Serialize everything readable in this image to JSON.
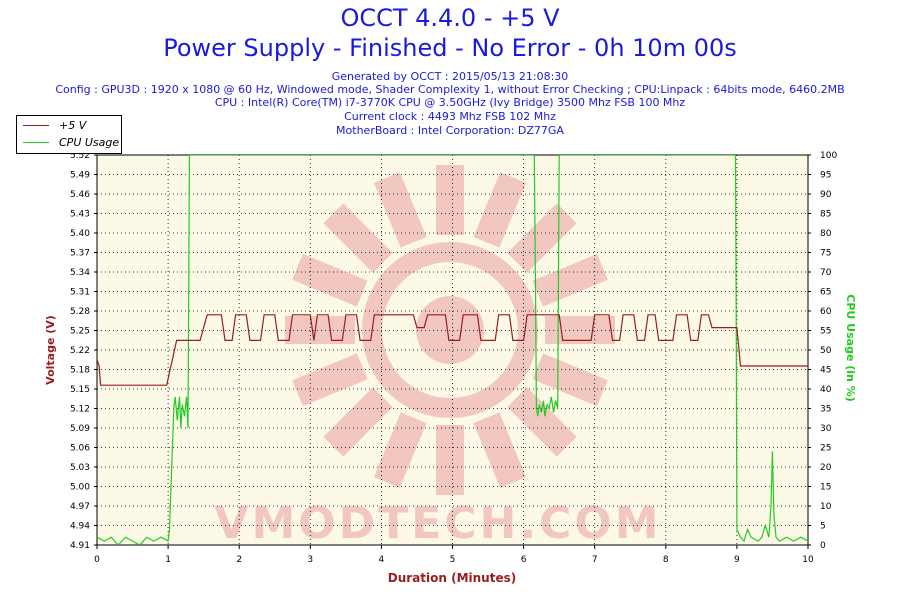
{
  "header": {
    "title": "OCCT 4.4.0 - +5 V",
    "subtitle": "Power Supply - Finished - No Error - 0h 10m 00s",
    "info": [
      "Generated by OCCT : 2015/05/13 21:08:30",
      "Config : GPU3D : 1920 x 1080 @ 60 Hz, Windowed mode, Shader Complexity 1, without Error Checking ; CPU:Linpack : 64bits mode, 6460.2MB",
      "CPU : Intel(R) Core(TM) i7-3770K CPU @ 3.50GHz (Ivy Bridge) 3500 Mhz FSB 100 Mhz",
      "Current clock : 4493 Mhz FSB 102 Mhz",
      "MotherBoard : Intel Corporation: DZ77GA"
    ]
  },
  "legend": [
    {
      "label": "+5 V",
      "color": "#9b1c1c"
    },
    {
      "label": "CPU Usage",
      "color": "#22cc22"
    }
  ],
  "colors": {
    "voltage": "#9b1c1c",
    "cpu": "#22cc22",
    "plot_bg": "#fcf9e6",
    "watermark": "#f2c7c0"
  },
  "chart_data": {
    "type": "line",
    "xlabel": "Duration (Minutes)",
    "ylabel": "Voltage (V)",
    "ylabel_right": "CPU Usage (in %)",
    "xlim": [
      0,
      10
    ],
    "ylim": [
      4.91,
      5.52
    ],
    "ylim_right": [
      0,
      100
    ],
    "x_ticks": [
      "0",
      "1",
      "2",
      "3",
      "4",
      "5",
      "6",
      "7",
      "8",
      "9",
      "10"
    ],
    "y_ticks": [
      "4.91",
      "4.94",
      "4.97",
      "5.00",
      "5.03",
      "5.06",
      "5.09",
      "5.12",
      "5.15",
      "5.18",
      "5.22",
      "5.25",
      "5.28",
      "5.31",
      "5.34",
      "5.37",
      "5.40",
      "5.43",
      "5.46",
      "5.49",
      "5.52"
    ],
    "y_ticks_right": [
      "0",
      "5",
      "10",
      "15",
      "20",
      "25",
      "30",
      "35",
      "40",
      "45",
      "50",
      "55",
      "60",
      "65",
      "70",
      "75",
      "80",
      "85",
      "90",
      "95",
      "100"
    ],
    "grid": true,
    "legend_position": "top-left",
    "watermark": "VMODTECH.COM",
    "series": [
      {
        "name": "+5 V",
        "x": [
          0.0,
          0.03,
          0.05,
          0.08,
          0.98,
          1.02,
          1.06,
          1.12,
          1.2,
          1.45,
          1.5,
          1.55,
          1.75,
          1.8,
          1.9,
          1.95,
          2.1,
          2.15,
          2.3,
          2.35,
          2.5,
          2.55,
          2.7,
          2.75,
          2.8,
          3.0,
          3.05,
          3.1,
          3.25,
          3.3,
          3.45,
          3.5,
          3.65,
          3.7,
          3.85,
          3.9,
          4.0,
          4.45,
          4.5,
          4.6,
          4.65,
          4.9,
          4.95,
          5.1,
          5.15,
          5.35,
          5.4,
          5.6,
          5.65,
          5.8,
          5.85,
          6.0,
          6.05,
          6.5,
          6.55,
          6.95,
          7.0,
          7.2,
          7.25,
          7.35,
          7.4,
          7.55,
          7.6,
          7.7,
          7.75,
          7.85,
          7.9,
          8.0,
          8.1,
          8.15,
          8.3,
          8.35,
          8.45,
          8.5,
          8.6,
          8.65,
          9.0,
          9.05,
          10.0
        ],
        "values": [
          5.2,
          5.19,
          5.16,
          5.16,
          5.16,
          5.18,
          5.2,
          5.23,
          5.23,
          5.23,
          5.25,
          5.27,
          5.27,
          5.23,
          5.23,
          5.27,
          5.27,
          5.23,
          5.23,
          5.27,
          5.27,
          5.23,
          5.23,
          5.27,
          5.27,
          5.27,
          5.23,
          5.27,
          5.27,
          5.23,
          5.23,
          5.27,
          5.27,
          5.23,
          5.23,
          5.27,
          5.27,
          5.27,
          5.25,
          5.25,
          5.27,
          5.27,
          5.23,
          5.23,
          5.27,
          5.27,
          5.23,
          5.23,
          5.27,
          5.27,
          5.23,
          5.23,
          5.27,
          5.27,
          5.23,
          5.23,
          5.27,
          5.27,
          5.23,
          5.23,
          5.27,
          5.27,
          5.23,
          5.23,
          5.27,
          5.27,
          5.23,
          5.23,
          5.23,
          5.27,
          5.27,
          5.23,
          5.23,
          5.27,
          5.27,
          5.25,
          5.25,
          5.19,
          5.19
        ]
      },
      {
        "name": "CPU Usage",
        "x": [
          0.0,
          0.1,
          0.2,
          0.3,
          0.4,
          0.5,
          0.6,
          0.7,
          0.8,
          0.9,
          1.0,
          1.02,
          1.05,
          1.08,
          1.1,
          1.13,
          1.16,
          1.18,
          1.2,
          1.23,
          1.26,
          1.28,
          1.3,
          1.31,
          1.32,
          6.15,
          6.17,
          6.18,
          6.2,
          6.22,
          6.25,
          6.28,
          6.3,
          6.33,
          6.36,
          6.39,
          6.42,
          6.45,
          6.48,
          6.5,
          6.52,
          6.54,
          6.55,
          6.56,
          8.98,
          8.99,
          9.0,
          9.05,
          9.1,
          9.15,
          9.2,
          9.3,
          9.35,
          9.4,
          9.45,
          9.48,
          9.5,
          9.52,
          9.55,
          9.6,
          9.7,
          9.8,
          9.9,
          10.0
        ],
        "values": [
          2,
          1,
          2,
          0,
          2,
          1,
          0,
          2,
          1,
          2,
          1,
          4,
          20,
          35,
          38,
          32,
          38,
          30,
          36,
          33,
          38,
          30,
          100,
          100,
          100,
          100,
          60,
          35,
          33,
          36,
          34,
          37,
          33,
          36,
          35,
          38,
          34,
          37,
          35,
          100,
          100,
          100,
          100,
          100,
          100,
          60,
          4,
          2,
          1,
          4,
          2,
          1,
          2,
          5,
          2,
          10,
          24,
          8,
          2,
          1,
          2,
          1,
          2,
          1
        ]
      }
    ]
  }
}
